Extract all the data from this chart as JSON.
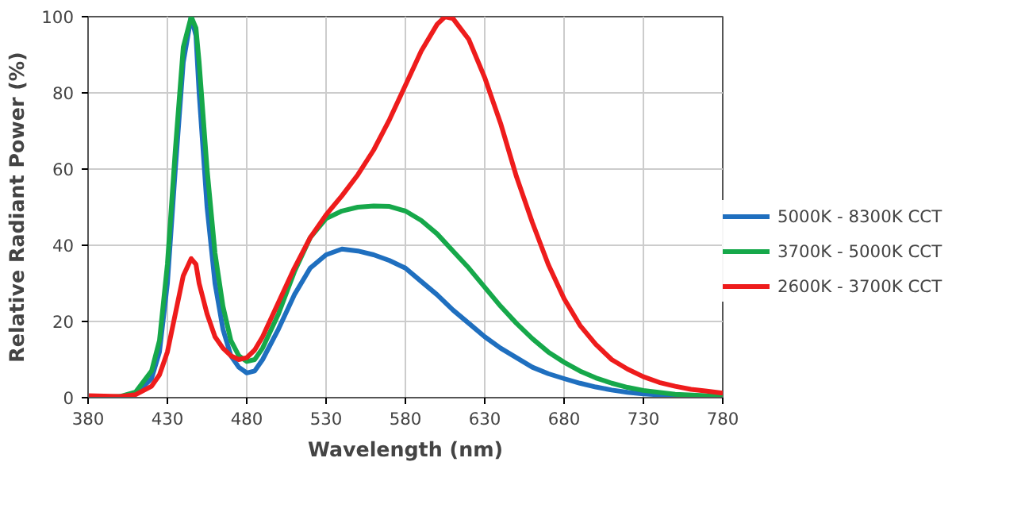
{
  "chart_data": {
    "type": "line",
    "xlabel": "Wavelength (nm)",
    "ylabel": "Relative Radiant Power (%)",
    "xlim": [
      380,
      780
    ],
    "xticks": [
      380,
      430,
      480,
      530,
      580,
      630,
      680,
      730,
      780
    ],
    "ylim": [
      0,
      100
    ],
    "yticks": [
      0,
      20,
      40,
      60,
      80,
      100
    ],
    "grid": true,
    "legend": "right",
    "marker": "none",
    "line_style": "solid",
    "series": [
      {
        "name": "5000K - 8300K CCT",
        "color": "#1f6fbf",
        "x": [
          380,
          400,
          410,
          420,
          425,
          430,
          435,
          440,
          445,
          448,
          450,
          455,
          460,
          465,
          470,
          475,
          480,
          485,
          490,
          500,
          510,
          520,
          530,
          540,
          550,
          560,
          570,
          580,
          590,
          600,
          610,
          620,
          630,
          640,
          650,
          660,
          670,
          680,
          690,
          700,
          710,
          720,
          730,
          750,
          780
        ],
        "values": [
          0,
          0,
          1,
          5,
          12,
          30,
          60,
          88,
          100,
          95,
          80,
          50,
          30,
          18,
          11,
          8,
          6.5,
          7,
          10,
          18,
          27,
          34,
          37.5,
          39,
          38.5,
          37.5,
          36,
          34,
          30.5,
          27,
          23,
          19.5,
          16,
          13,
          10.5,
          8,
          6.3,
          5,
          3.8,
          2.8,
          2,
          1.4,
          1,
          0.5,
          0.2
        ]
      },
      {
        "name": "3700K - 5000K CCT",
        "color": "#16a84a",
        "x": [
          380,
          400,
          410,
          420,
          425,
          430,
          435,
          440,
          445,
          448,
          450,
          455,
          460,
          465,
          470,
          475,
          480,
          485,
          490,
          500,
          510,
          520,
          530,
          540,
          550,
          560,
          570,
          580,
          590,
          600,
          610,
          620,
          630,
          640,
          650,
          660,
          670,
          680,
          690,
          700,
          710,
          720,
          730,
          750,
          780
        ],
        "values": [
          0,
          0.3,
          1.5,
          7,
          15,
          35,
          65,
          92,
          100,
          97,
          88,
          60,
          38,
          24,
          15,
          11,
          9.5,
          10,
          13,
          22,
          33,
          42,
          47,
          49,
          50,
          50.3,
          50.2,
          49,
          46.5,
          43,
          38.5,
          34,
          29,
          24,
          19.5,
          15.5,
          12,
          9.3,
          7,
          5.2,
          3.8,
          2.7,
          1.9,
          0.9,
          0.3
        ]
      },
      {
        "name": "2600K - 3700K CCT",
        "color": "#ee1c1c",
        "x": [
          380,
          400,
          410,
          420,
          425,
          430,
          435,
          440,
          445,
          448,
          450,
          455,
          460,
          465,
          470,
          475,
          480,
          485,
          490,
          500,
          510,
          520,
          530,
          540,
          550,
          560,
          570,
          580,
          590,
          600,
          605,
          610,
          620,
          630,
          640,
          650,
          660,
          670,
          680,
          690,
          700,
          710,
          720,
          730,
          740,
          750,
          760,
          770,
          780
        ],
        "values": [
          0.5,
          0.3,
          0.8,
          3,
          6,
          12,
          22,
          32,
          36.5,
          35,
          30,
          22,
          16,
          13,
          11,
          10,
          10.5,
          12.5,
          16,
          25,
          34,
          42,
          48,
          53,
          58.5,
          65,
          73,
          82,
          91,
          98,
          100,
          99.5,
          94,
          84,
          72,
          58,
          46,
          35,
          26,
          19,
          14,
          10,
          7.5,
          5.5,
          4,
          3,
          2.2,
          1.7,
          1.2
        ]
      }
    ]
  }
}
